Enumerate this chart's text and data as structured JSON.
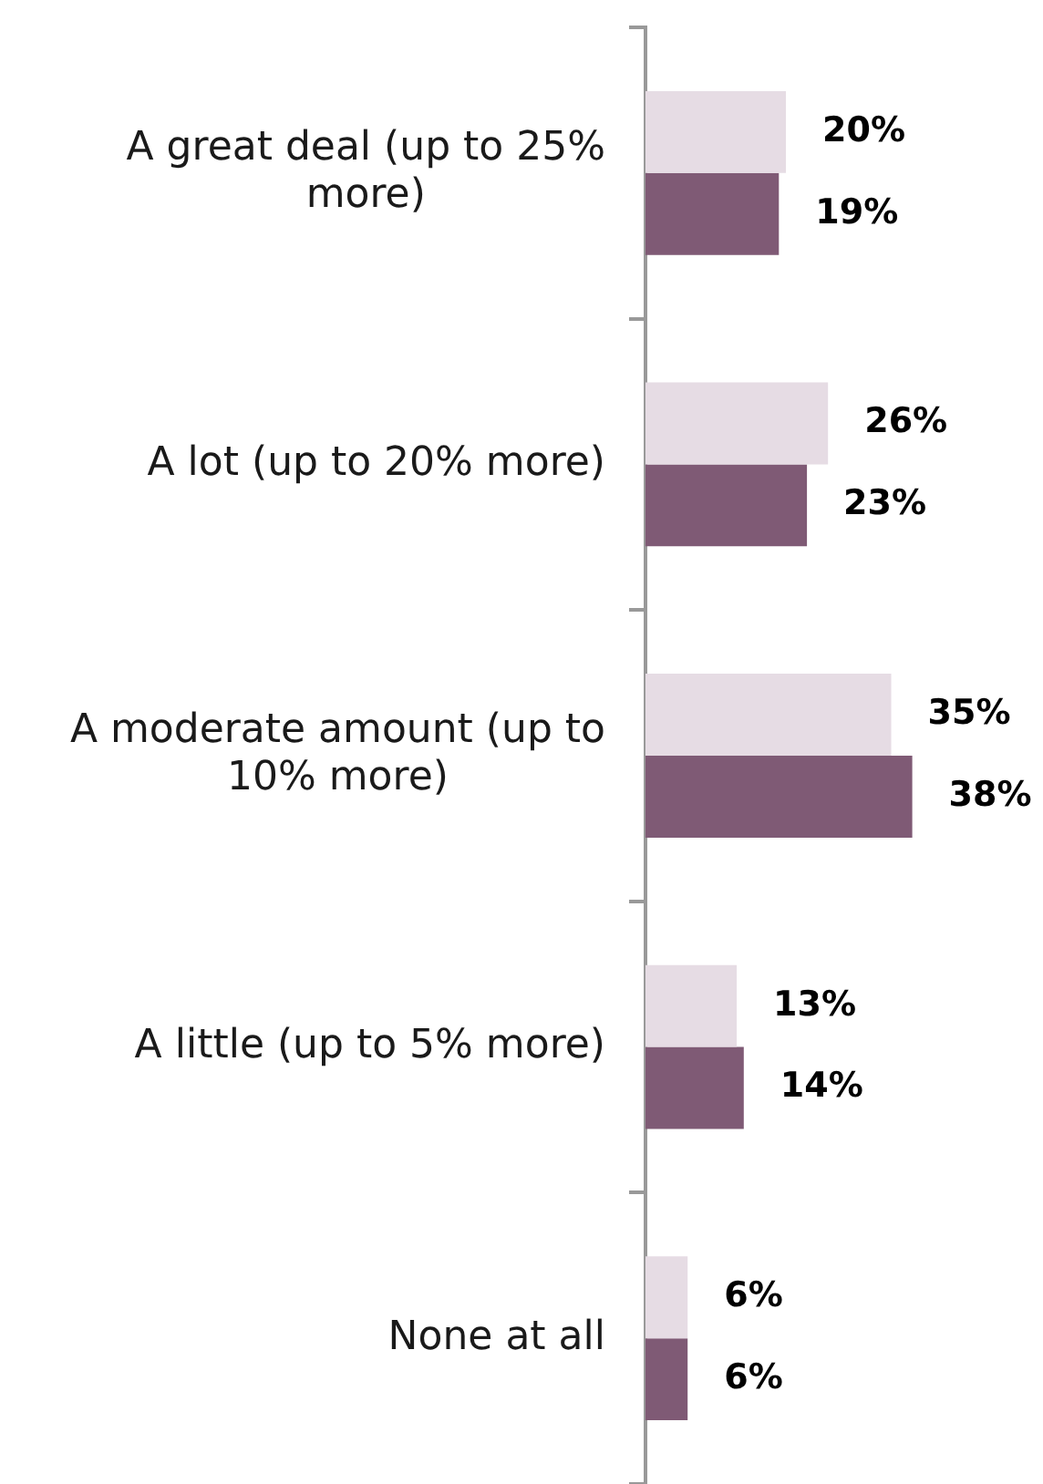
{
  "chart_data": {
    "type": "bar",
    "orientation": "horizontal",
    "categories": [
      "A great deal (up to 25% more)",
      "A lot (up to 20% more)",
      "A moderate amount (up to 10% more)",
      "A little (up to 5% more)",
      "None at all"
    ],
    "series": [
      {
        "color": "#e6dce4",
        "values": [
          20,
          26,
          35,
          13,
          6
        ],
        "value_labels": [
          "20%",
          "26%",
          "35%",
          "13%",
          "6%"
        ]
      },
      {
        "color": "#7f5a75",
        "values": [
          19,
          23,
          38,
          14,
          6
        ],
        "value_labels": [
          "19%",
          "23%",
          "38%",
          "14%",
          "6%"
        ]
      }
    ],
    "tick_labels": "y",
    "grid": false,
    "legend": false
  }
}
